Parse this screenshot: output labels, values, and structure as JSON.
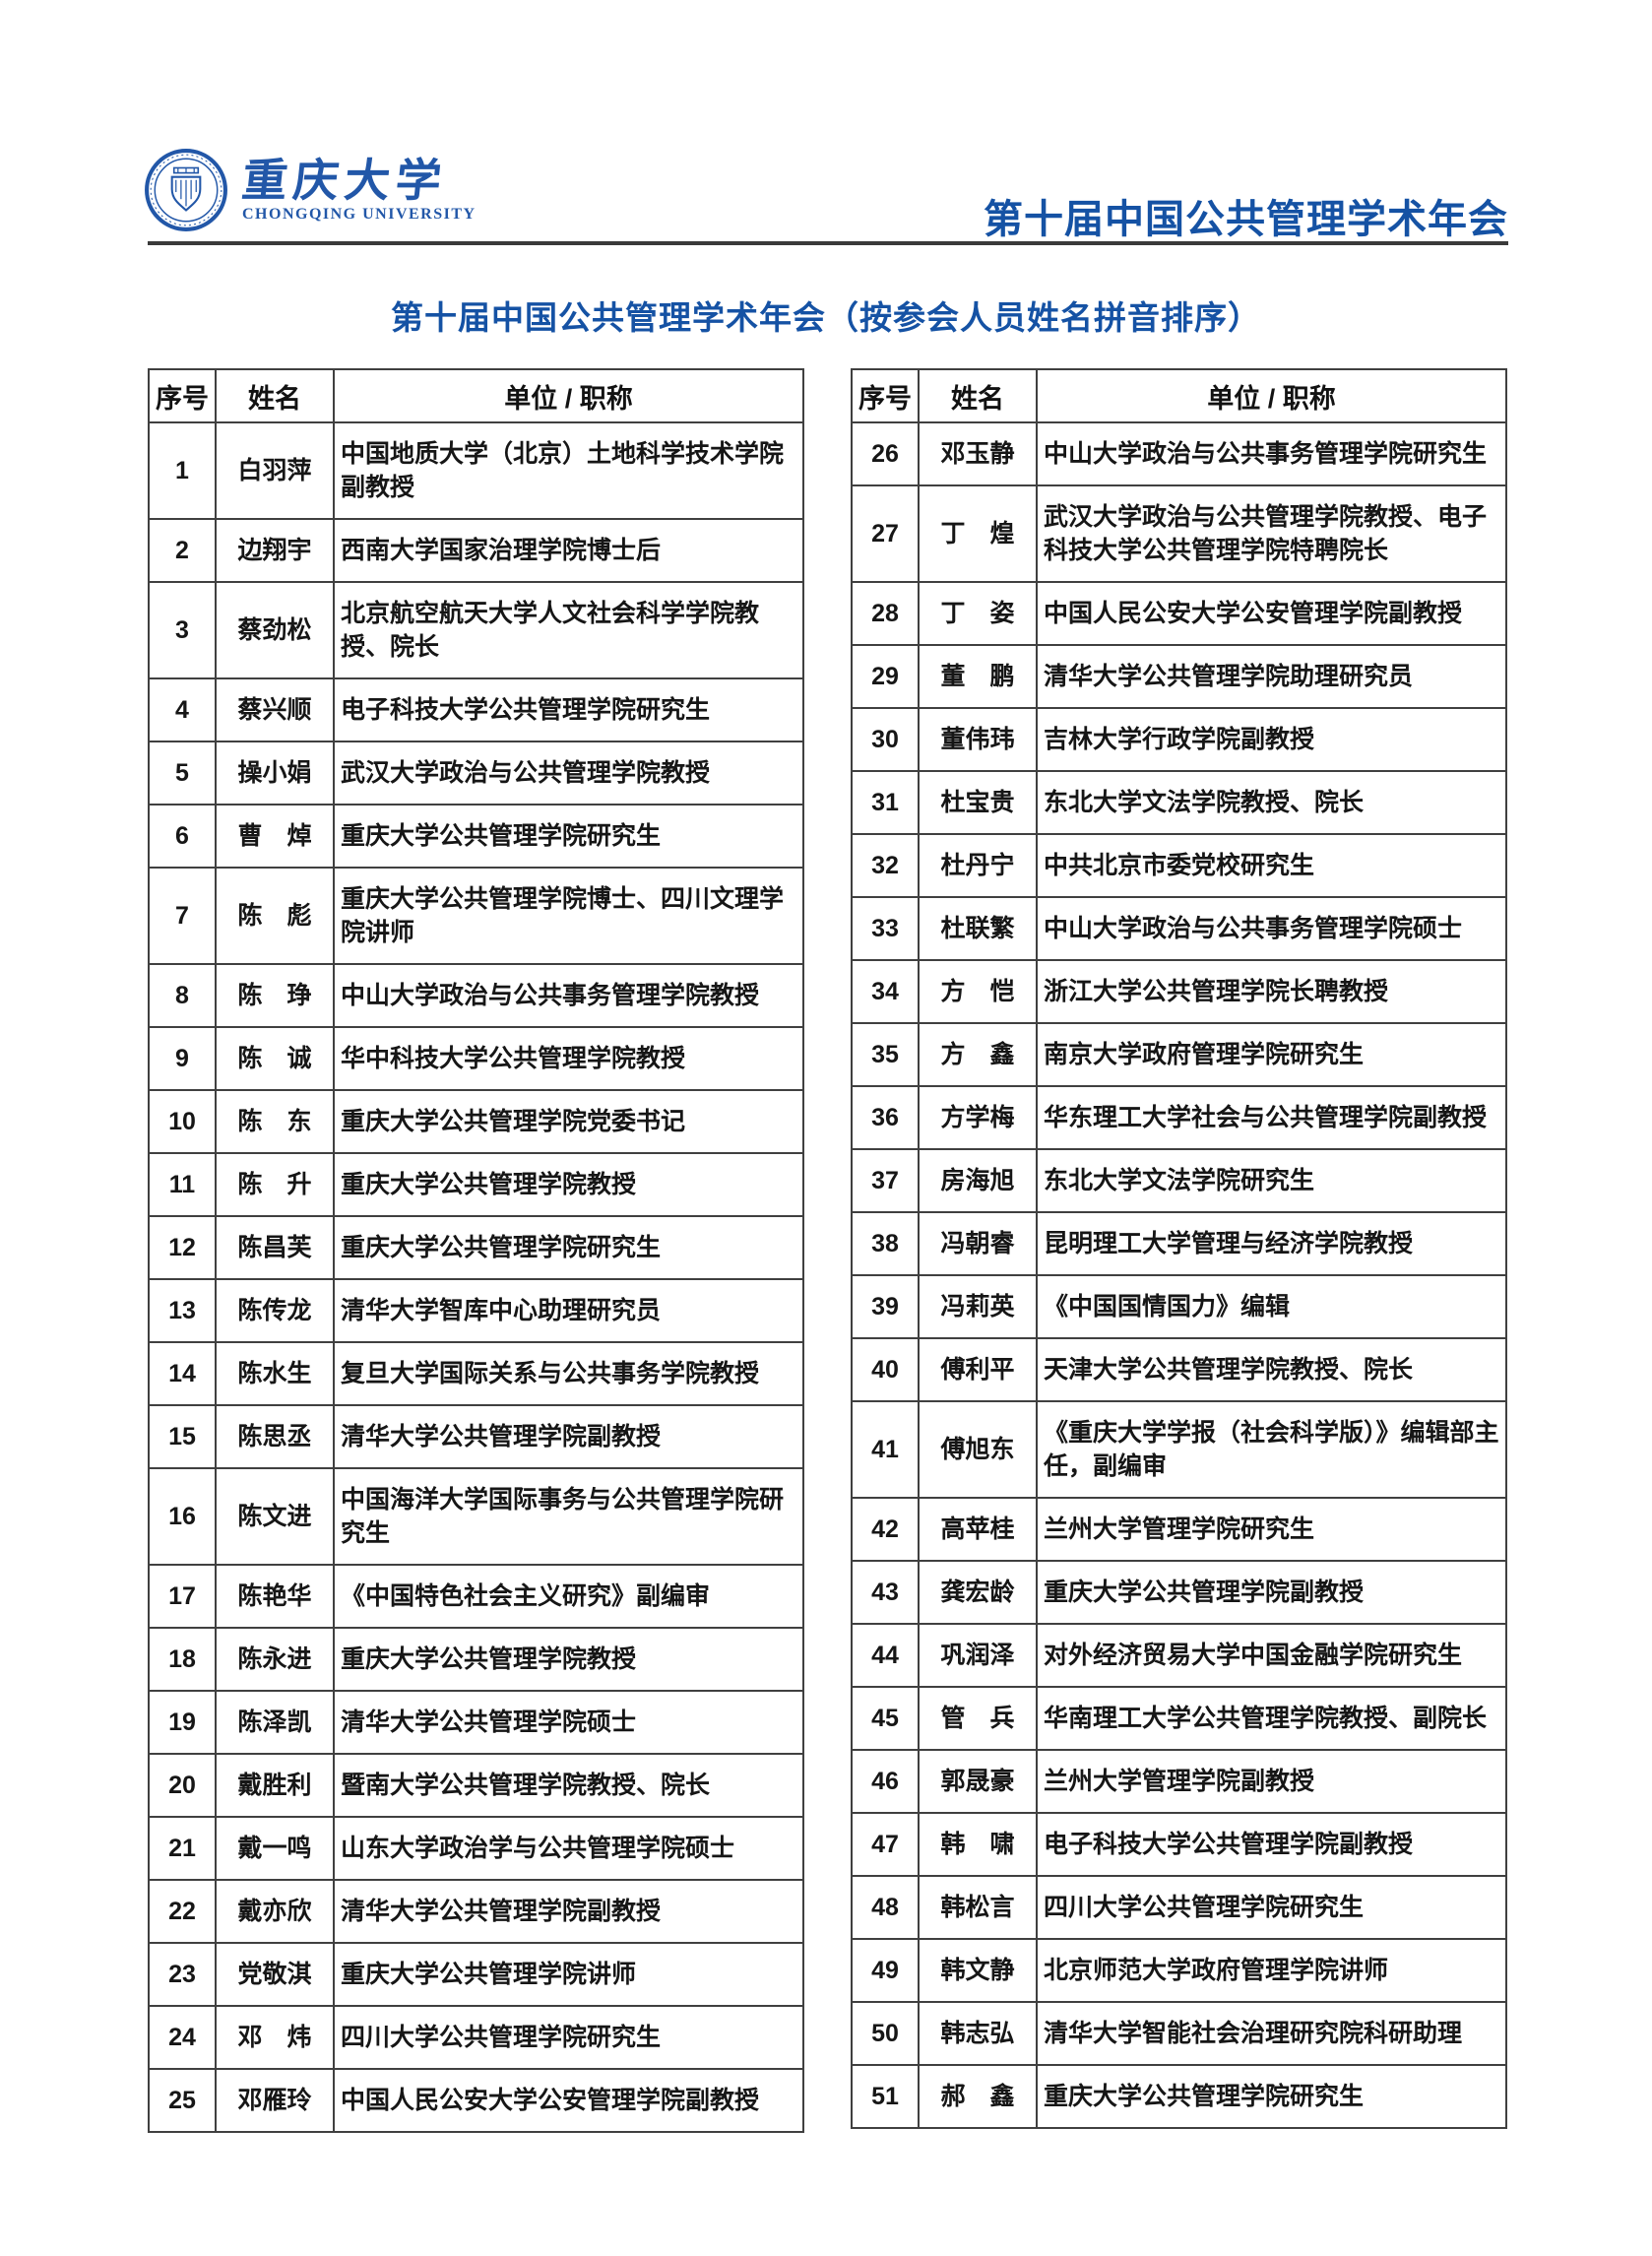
{
  "header": {
    "logo": {
      "cn": "重庆大学",
      "en": "CHONGQING UNIVERSITY"
    },
    "conference": "第十届中国公共管理学术年会"
  },
  "title": "第十届中国公共管理学术年会（按参会人员姓名拼音排序）",
  "columns": {
    "index": "序号",
    "name": "姓名",
    "affiliation": "单位 / 职称"
  },
  "colors": {
    "brand_blue": "#1552a4",
    "logo_blue": "#2257a8",
    "border": "#404040",
    "rule": "#3a3a3a",
    "text": "#161616"
  },
  "tables": {
    "left": [
      {
        "no": "1",
        "name": "白羽萍",
        "org": "中国地质大学（北京）土地科学技术学院副教授"
      },
      {
        "no": "2",
        "name": "边翔宇",
        "org": "西南大学国家治理学院博士后"
      },
      {
        "no": "3",
        "name": "蔡劲松",
        "org": "北京航空航天大学人文社会科学学院教授、院长"
      },
      {
        "no": "4",
        "name": "蔡兴顺",
        "org": "电子科技大学公共管理学院研究生"
      },
      {
        "no": "5",
        "name": "操小娟",
        "org": "武汉大学政治与公共管理学院教授"
      },
      {
        "no": "6",
        "name": "曹　焯",
        "org": "重庆大学公共管理学院研究生"
      },
      {
        "no": "7",
        "name": "陈　彪",
        "org": "重庆大学公共管理学院博士、四川文理学院讲师"
      },
      {
        "no": "8",
        "name": "陈　琤",
        "org": "中山大学政治与公共事务管理学院教授"
      },
      {
        "no": "9",
        "name": "陈　诚",
        "org": "华中科技大学公共管理学院教授"
      },
      {
        "no": "10",
        "name": "陈　东",
        "org": "重庆大学公共管理学院党委书记"
      },
      {
        "no": "11",
        "name": "陈　升",
        "org": "重庆大学公共管理学院教授"
      },
      {
        "no": "12",
        "name": "陈昌芙",
        "org": "重庆大学公共管理学院研究生"
      },
      {
        "no": "13",
        "name": "陈传龙",
        "org": "清华大学智库中心助理研究员"
      },
      {
        "no": "14",
        "name": "陈水生",
        "org": "复旦大学国际关系与公共事务学院教授"
      },
      {
        "no": "15",
        "name": "陈思丞",
        "org": "清华大学公共管理学院副教授"
      },
      {
        "no": "16",
        "name": "陈文进",
        "org": "中国海洋大学国际事务与公共管理学院研究生"
      },
      {
        "no": "17",
        "name": "陈艳华",
        "org": "《中国特色社会主义研究》副编审"
      },
      {
        "no": "18",
        "name": "陈永进",
        "org": "重庆大学公共管理学院教授"
      },
      {
        "no": "19",
        "name": "陈泽凯",
        "org": "清华大学公共管理学院硕士"
      },
      {
        "no": "20",
        "name": "戴胜利",
        "org": "暨南大学公共管理学院教授、院长"
      },
      {
        "no": "21",
        "name": "戴一鸣",
        "org": "山东大学政治学与公共管理学院硕士"
      },
      {
        "no": "22",
        "name": "戴亦欣",
        "org": "清华大学公共管理学院副教授"
      },
      {
        "no": "23",
        "name": "党敬淇",
        "org": "重庆大学公共管理学院讲师"
      },
      {
        "no": "24",
        "name": "邓　炜",
        "org": "四川大学公共管理学院研究生"
      },
      {
        "no": "25",
        "name": "邓雁玲",
        "org": "中国人民公安大学公安管理学院副教授"
      }
    ],
    "right": [
      {
        "no": "26",
        "name": "邓玉静",
        "org": "中山大学政治与公共事务管理学院研究生"
      },
      {
        "no": "27",
        "name": "丁　煌",
        "org": "武汉大学政治与公共管理学院教授、电子科技大学公共管理学院特聘院长"
      },
      {
        "no": "28",
        "name": "丁　姿",
        "org": "中国人民公安大学公安管理学院副教授"
      },
      {
        "no": "29",
        "name": "董　鹏",
        "org": "清华大学公共管理学院助理研究员"
      },
      {
        "no": "30",
        "name": "董伟玮",
        "org": "吉林大学行政学院副教授"
      },
      {
        "no": "31",
        "name": "杜宝贵",
        "org": "东北大学文法学院教授、院长"
      },
      {
        "no": "32",
        "name": "杜丹宁",
        "org": "中共北京市委党校研究生"
      },
      {
        "no": "33",
        "name": "杜联繁",
        "org": "中山大学政治与公共事务管理学院硕士"
      },
      {
        "no": "34",
        "name": "方　恺",
        "org": "浙江大学公共管理学院长聘教授"
      },
      {
        "no": "35",
        "name": "方　鑫",
        "org": "南京大学政府管理学院研究生"
      },
      {
        "no": "36",
        "name": "方学梅",
        "org": "华东理工大学社会与公共管理学院副教授"
      },
      {
        "no": "37",
        "name": "房海旭",
        "org": "东北大学文法学院研究生"
      },
      {
        "no": "38",
        "name": "冯朝睿",
        "org": "昆明理工大学管理与经济学院教授"
      },
      {
        "no": "39",
        "name": "冯莉英",
        "org": "《中国国情国力》编辑"
      },
      {
        "no": "40",
        "name": "傅利平",
        "org": "天津大学公共管理学院教授、院长"
      },
      {
        "no": "41",
        "name": "傅旭东",
        "org": "《重庆大学学报（社会科学版）》编辑部主任，副编审"
      },
      {
        "no": "42",
        "name": "高苹桂",
        "org": "兰州大学管理学院研究生"
      },
      {
        "no": "43",
        "name": "龚宏龄",
        "org": "重庆大学公共管理学院副教授"
      },
      {
        "no": "44",
        "name": "巩润泽",
        "org": "对外经济贸易大学中国金融学院研究生"
      },
      {
        "no": "45",
        "name": "管　兵",
        "org": "华南理工大学公共管理学院教授、副院长"
      },
      {
        "no": "46",
        "name": "郭晟豪",
        "org": "兰州大学管理学院副教授"
      },
      {
        "no": "47",
        "name": "韩　啸",
        "org": "电子科技大学公共管理学院副教授"
      },
      {
        "no": "48",
        "name": "韩松言",
        "org": "四川大学公共管理学院研究生"
      },
      {
        "no": "49",
        "name": "韩文静",
        "org": "北京师范大学政府管理学院讲师"
      },
      {
        "no": "50",
        "name": "韩志弘",
        "org": "清华大学智能社会治理研究院科研助理"
      },
      {
        "no": "51",
        "name": "郝　鑫",
        "org": "重庆大学公共管理学院研究生"
      }
    ]
  }
}
